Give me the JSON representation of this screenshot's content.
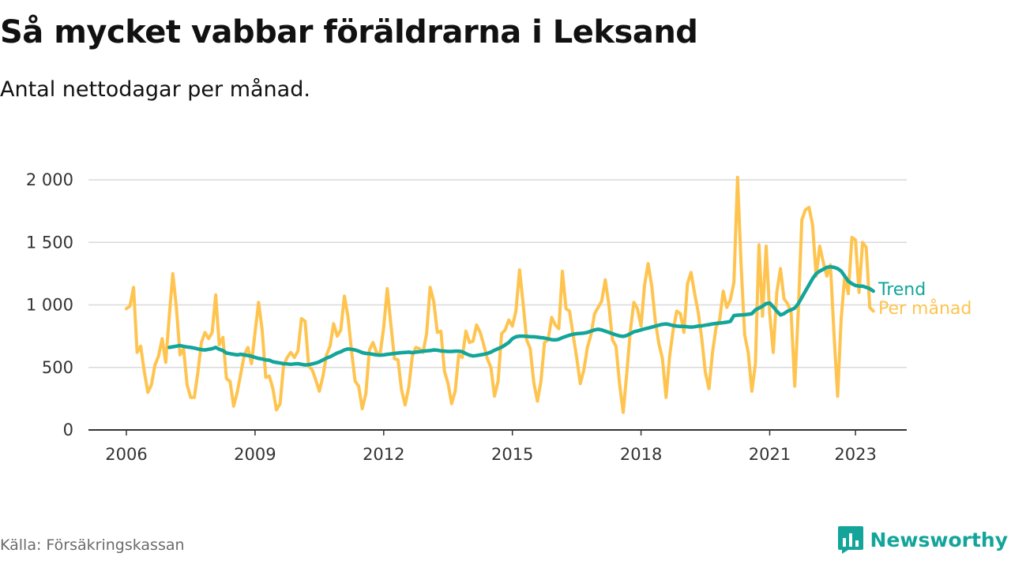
{
  "header": {
    "title": "Så mycket vabbar föräldrarna i Leksand",
    "subtitle": "Antal nettodagar per månad."
  },
  "footer": {
    "source": "Källa: Försäkringskassan",
    "brand": "Newsworthy",
    "brand_icon": "bar-chart-logo-icon"
  },
  "colors": {
    "monthly": "#fec44f",
    "trend": "#13a59a",
    "grid": "#d9d9d9",
    "axis": "#333333",
    "brand": "#13a59a"
  },
  "chart_data": {
    "type": "line",
    "title": "Så mycket vabbar föräldrarna i Leksand",
    "subtitle": "Antal nettodagar per månad.",
    "xlabel": "",
    "ylabel": "",
    "x_start": "2006-01",
    "x_ticks": [
      "2006",
      "2009",
      "2012",
      "2015",
      "2018",
      "2021",
      "2023"
    ],
    "y_ticks": [
      "0",
      "500",
      "1 000",
      "1 500",
      "2 000"
    ],
    "y_tick_values": [
      0,
      500,
      1000,
      1500,
      2000
    ],
    "ylim": [
      0,
      2000
    ],
    "grid": true,
    "legend": "direct labels at line ends (right)",
    "series": [
      {
        "name": "Per månad",
        "color": "#fec44f",
        "values": [
          970,
          990,
          1140,
          620,
          670,
          470,
          300,
          360,
          520,
          590,
          730,
          540,
          910,
          1250,
          980,
          600,
          650,
          360,
          260,
          260,
          460,
          700,
          780,
          730,
          780,
          1080,
          680,
          740,
          410,
          390,
          190,
          300,
          450,
          600,
          660,
          530,
          780,
          1020,
          800,
          420,
          430,
          330,
          160,
          210,
          520,
          580,
          620,
          580,
          630,
          890,
          870,
          510,
          480,
          400,
          310,
          430,
          600,
          670,
          850,
          750,
          800,
          1070,
          910,
          630,
          390,
          350,
          170,
          290,
          640,
          700,
          620,
          610,
          820,
          1130,
          850,
          570,
          560,
          320,
          200,
          340,
          590,
          660,
          650,
          620,
          770,
          1140,
          1030,
          780,
          790,
          470,
          370,
          210,
          310,
          600,
          580,
          790,
          700,
          710,
          840,
          780,
          680,
          570,
          500,
          270,
          390,
          770,
          800,
          880,
          830,
          950,
          1280,
          1010,
          720,
          650,
          380,
          230,
          390,
          700,
          720,
          900,
          840,
          810,
          1270,
          970,
          950,
          760,
          580,
          370,
          480,
          660,
          760,
          930,
          980,
          1030,
          1200,
          1000,
          720,
          670,
          370,
          140,
          450,
          790,
          1020,
          970,
          830,
          1160,
          1330,
          1150,
          870,
          690,
          570,
          260,
          590,
          800,
          950,
          930,
          780,
          1170,
          1260,
          1090,
          940,
          730,
          460,
          330,
          620,
          820,
          880,
          1110,
          980,
          1040,
          1180,
          2020,
          1320,
          760,
          620,
          310,
          530,
          1480,
          910,
          1470,
          930,
          620,
          1100,
          1290,
          1050,
          1010,
          940,
          350,
          950,
          1680,
          1760,
          1780,
          1640,
          1230,
          1470,
          1340,
          1230,
          1320,
          770,
          270,
          890,
          1230,
          1090,
          1540,
          1520,
          1100,
          1500,
          1460,
          980,
          950
        ]
      },
      {
        "name": "Trend",
        "color": "#13a59a",
        "start": "2007-01",
        "values": [
          660,
          665,
          670,
          675,
          668,
          664,
          660,
          655,
          648,
          642,
          640,
          645,
          650,
          660,
          645,
          635,
          615,
          610,
          605,
          600,
          605,
          600,
          595,
          590,
          580,
          572,
          568,
          560,
          558,
          545,
          540,
          535,
          530,
          528,
          525,
          528,
          530,
          525,
          520,
          522,
          528,
          535,
          545,
          560,
          575,
          585,
          600,
          615,
          625,
          640,
          648,
          645,
          640,
          630,
          618,
          612,
          610,
          605,
          600,
          598,
          600,
          605,
          608,
          612,
          615,
          618,
          620,
          622,
          618,
          622,
          625,
          630,
          632,
          635,
          640,
          638,
          632,
          630,
          628,
          628,
          630,
          630,
          625,
          610,
          598,
          592,
          595,
          600,
          605,
          612,
          622,
          638,
          650,
          662,
          680,
          700,
          730,
          745,
          750,
          750,
          748,
          746,
          745,
          742,
          738,
          735,
          728,
          722,
          720,
          725,
          738,
          748,
          758,
          765,
          770,
          772,
          775,
          780,
          790,
          800,
          805,
          800,
          790,
          780,
          770,
          760,
          752,
          748,
          755,
          770,
          785,
          792,
          800,
          808,
          815,
          822,
          830,
          838,
          845,
          848,
          842,
          835,
          830,
          828,
          828,
          825,
          822,
          825,
          830,
          832,
          838,
          842,
          848,
          852,
          855,
          858,
          862,
          868,
          915,
          918,
          920,
          922,
          925,
          930,
          960,
          975,
          990,
          1010,
          1015,
          985,
          950,
          920,
          930,
          950,
          960,
          975,
          1010,
          1060,
          1110,
          1160,
          1210,
          1250,
          1270,
          1285,
          1300,
          1305,
          1300,
          1290,
          1270,
          1230,
          1190,
          1170,
          1155,
          1150,
          1150,
          1140,
          1130,
          1110
        ]
      }
    ]
  }
}
